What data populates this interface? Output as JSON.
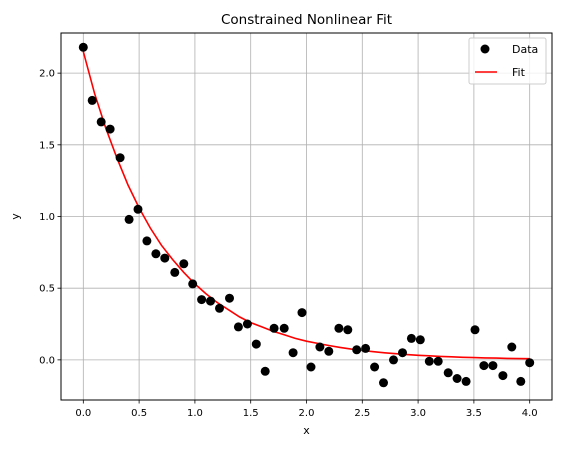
{
  "chart_data": {
    "type": "scatter",
    "title": "Constrained Nonlinear Fit",
    "xlabel": "x",
    "ylabel": "y",
    "xlim": [
      -0.2,
      4.2
    ],
    "ylim": [
      -0.28,
      2.28
    ],
    "xticks": [
      0.0,
      0.5,
      1.0,
      1.5,
      2.0,
      2.5,
      3.0,
      3.5,
      4.0
    ],
    "xtick_labels": [
      "0.0",
      "0.5",
      "1.0",
      "1.5",
      "2.0",
      "2.5",
      "3.0",
      "3.5",
      "4.0"
    ],
    "yticks": [
      0.0,
      0.5,
      1.0,
      1.5,
      2.0
    ],
    "ytick_labels": [
      "0.0",
      "0.5",
      "1.0",
      "1.5",
      "2.0"
    ],
    "grid": true,
    "legend": {
      "placement": "top-right"
    },
    "series": [
      {
        "name": "Data",
        "kind": "scatter",
        "color": "#000000",
        "x": [
          0.0,
          0.08,
          0.16,
          0.24,
          0.33,
          0.41,
          0.49,
          0.57,
          0.65,
          0.73,
          0.82,
          0.9,
          0.98,
          1.06,
          1.14,
          1.22,
          1.31,
          1.39,
          1.47,
          1.55,
          1.63,
          1.71,
          1.8,
          1.88,
          1.96,
          2.04,
          2.12,
          2.2,
          2.29,
          2.37,
          2.45,
          2.53,
          2.61,
          2.69,
          2.78,
          2.86,
          2.94,
          3.02,
          3.1,
          3.18,
          3.27,
          3.35,
          3.43,
          3.51,
          3.59,
          3.67,
          3.76,
          3.84,
          3.92,
          4.0
        ],
        "y": [
          2.18,
          1.81,
          1.66,
          1.61,
          1.41,
          0.98,
          1.05,
          0.83,
          0.74,
          0.71,
          0.61,
          0.67,
          0.53,
          0.42,
          0.41,
          0.36,
          0.43,
          0.23,
          0.25,
          0.11,
          -0.08,
          0.22,
          0.22,
          0.05,
          0.33,
          -0.05,
          0.09,
          0.06,
          0.22,
          0.21,
          0.07,
          0.08,
          -0.05,
          -0.16,
          0.0,
          0.05,
          0.15,
          0.14,
          -0.01,
          -0.01,
          -0.09,
          -0.13,
          -0.15,
          0.21,
          -0.04,
          -0.04,
          -0.11,
          0.09,
          -0.15,
          -0.02
        ]
      },
      {
        "name": "Fit",
        "kind": "line",
        "color": "#ff0000",
        "x": [
          0.0,
          0.1,
          0.2,
          0.3,
          0.4,
          0.5,
          0.6,
          0.7,
          0.8,
          0.9,
          1.0,
          1.1,
          1.2,
          1.3,
          1.4,
          1.5,
          1.6,
          1.7,
          1.8,
          1.9,
          2.0,
          2.1,
          2.2,
          2.3,
          2.4,
          2.5,
          2.6,
          2.7,
          2.8,
          2.9,
          3.0,
          3.1,
          3.2,
          3.3,
          3.4,
          3.5,
          3.6,
          3.7,
          3.8,
          3.9,
          4.0
        ],
        "y": [
          2.15,
          1.86,
          1.62,
          1.41,
          1.22,
          1.06,
          0.92,
          0.8,
          0.7,
          0.61,
          0.53,
          0.46,
          0.4,
          0.35,
          0.3,
          0.26,
          0.23,
          0.2,
          0.175,
          0.15,
          0.13,
          0.115,
          0.1,
          0.087,
          0.075,
          0.065,
          0.057,
          0.049,
          0.043,
          0.037,
          0.032,
          0.028,
          0.024,
          0.021,
          0.018,
          0.016,
          0.014,
          0.012,
          0.01,
          0.009,
          0.008
        ]
      }
    ]
  }
}
